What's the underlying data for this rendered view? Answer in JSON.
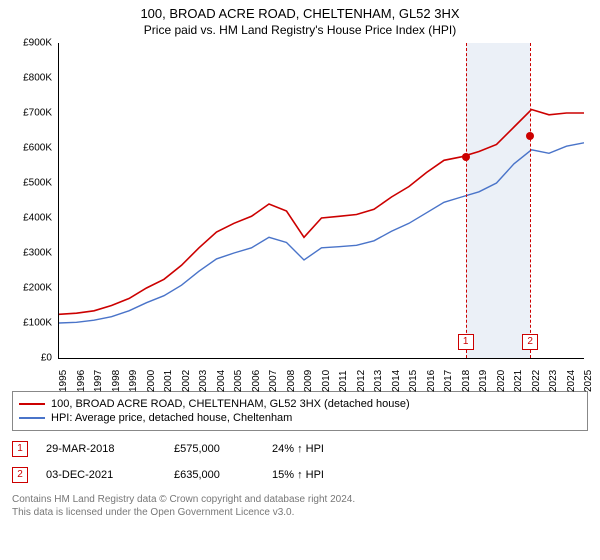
{
  "title_line1": "100, BROAD ACRE ROAD, CHELTENHAM, GL52 3HX",
  "title_line2": "Price paid vs. HM Land Registry's House Price Index (HPI)",
  "chart": {
    "type": "line",
    "background_color": "#ffffff",
    "axis_color": "#000000",
    "x": {
      "min": 1995,
      "max": 2025,
      "step": 1,
      "labels_rotate_deg": -90,
      "fontsize": 10
    },
    "y": {
      "min": 0,
      "max": 900000,
      "step": 100000,
      "prefix": "£",
      "fontsize": 10,
      "ticks": [
        "£0",
        "£100K",
        "£200K",
        "£300K",
        "£400K",
        "£500K",
        "£600K",
        "£700K",
        "£800K",
        "£900K"
      ]
    },
    "series": [
      {
        "name": "100, BROAD ACRE ROAD, CHELTENHAM, GL52 3HX (detached house)",
        "color": "#cc0000",
        "line_width": 1.6,
        "points": [
          [
            1995,
            125000
          ],
          [
            1996,
            128000
          ],
          [
            1997,
            135000
          ],
          [
            1998,
            150000
          ],
          [
            1999,
            170000
          ],
          [
            2000,
            200000
          ],
          [
            2001,
            225000
          ],
          [
            2002,
            265000
          ],
          [
            2003,
            315000
          ],
          [
            2004,
            360000
          ],
          [
            2005,
            385000
          ],
          [
            2006,
            405000
          ],
          [
            2007,
            440000
          ],
          [
            2008,
            420000
          ],
          [
            2009,
            345000
          ],
          [
            2010,
            400000
          ],
          [
            2011,
            405000
          ],
          [
            2012,
            410000
          ],
          [
            2013,
            425000
          ],
          [
            2014,
            460000
          ],
          [
            2015,
            490000
          ],
          [
            2016,
            530000
          ],
          [
            2017,
            565000
          ],
          [
            2018,
            575000
          ],
          [
            2019,
            590000
          ],
          [
            2020,
            610000
          ],
          [
            2021,
            660000
          ],
          [
            2022,
            710000
          ],
          [
            2023,
            695000
          ],
          [
            2024,
            700000
          ],
          [
            2025,
            700000
          ]
        ]
      },
      {
        "name": "HPI: Average price, detached house, Cheltenham",
        "color": "#4a74c9",
        "line_width": 1.4,
        "points": [
          [
            1995,
            100000
          ],
          [
            1996,
            102000
          ],
          [
            1997,
            108000
          ],
          [
            1998,
            118000
          ],
          [
            1999,
            135000
          ],
          [
            2000,
            158000
          ],
          [
            2001,
            178000
          ],
          [
            2002,
            208000
          ],
          [
            2003,
            248000
          ],
          [
            2004,
            283000
          ],
          [
            2005,
            300000
          ],
          [
            2006,
            315000
          ],
          [
            2007,
            345000
          ],
          [
            2008,
            330000
          ],
          [
            2009,
            280000
          ],
          [
            2010,
            315000
          ],
          [
            2011,
            318000
          ],
          [
            2012,
            322000
          ],
          [
            2013,
            335000
          ],
          [
            2014,
            362000
          ],
          [
            2015,
            385000
          ],
          [
            2016,
            415000
          ],
          [
            2017,
            445000
          ],
          [
            2018,
            460000
          ],
          [
            2019,
            475000
          ],
          [
            2020,
            500000
          ],
          [
            2021,
            555000
          ],
          [
            2022,
            595000
          ],
          [
            2023,
            585000
          ],
          [
            2024,
            605000
          ],
          [
            2025,
            615000
          ]
        ]
      }
    ],
    "markers": [
      {
        "id": 1,
        "label": "1",
        "x": 2018.24,
        "y": 575000,
        "badge_y": 70000,
        "badge_color": "#cc0000",
        "dash_color": "#cc0000",
        "dot_color": "#cc0000"
      },
      {
        "id": 2,
        "label": "2",
        "x": 2021.92,
        "y": 635000,
        "badge_y": 70000,
        "badge_color": "#cc0000",
        "dash_color": "#cc0000",
        "dot_color": "#cc0000"
      }
    ],
    "marker_band": {
      "from_x": 2018.24,
      "to_x": 2021.92,
      "fill": "#dbe3f0",
      "opacity": 0.55
    }
  },
  "legend": {
    "border_color": "#888888",
    "items": [
      {
        "color": "#cc0000",
        "label": "100, BROAD ACRE ROAD, CHELTENHAM, GL52 3HX (detached house)"
      },
      {
        "color": "#4a74c9",
        "label": "HPI: Average price, detached house, Cheltenham"
      }
    ]
  },
  "sales": [
    {
      "badge": "1",
      "date": "29-MAR-2018",
      "price": "£575,000",
      "delta": "24% ↑ HPI"
    },
    {
      "badge": "2",
      "date": "03-DEC-2021",
      "price": "£635,000",
      "delta": "15% ↑ HPI"
    }
  ],
  "footer_line1": "Contains HM Land Registry data © Crown copyright and database right 2024.",
  "footer_line2": "This data is licensed under the Open Government Licence v3.0."
}
